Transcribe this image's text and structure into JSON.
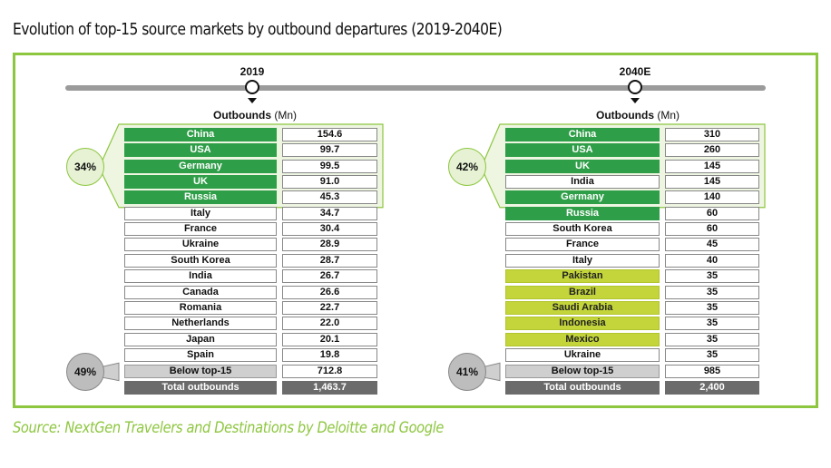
{
  "title": "Evolution of top-15 source markets by outbound departures (2019-2040E)",
  "source": "Source: NextGen Travelers and Destinations by Deloitte and Google",
  "colors": {
    "brand_green": "#8dc63f",
    "dark_green": "#2f9e48",
    "lime": "#c3d53a",
    "grey": "#cfcfcf",
    "dark_grey": "#6b6b6b"
  },
  "chart_data": [
    {
      "type": "table",
      "year_label": "2019",
      "column_header": "Outbounds",
      "column_unit": "(Mn)",
      "top5_share": "34%",
      "below_share": "49%",
      "rows": [
        {
          "country": "China",
          "value": "154.6",
          "style": "green"
        },
        {
          "country": "USA",
          "value": "99.7",
          "style": "green"
        },
        {
          "country": "Germany",
          "value": "99.5",
          "style": "green"
        },
        {
          "country": "UK",
          "value": "91.0",
          "style": "green"
        },
        {
          "country": "Russia",
          "value": "45.3",
          "style": "green"
        },
        {
          "country": "Italy",
          "value": "34.7",
          "style": "white"
        },
        {
          "country": "France",
          "value": "30.4",
          "style": "white"
        },
        {
          "country": "Ukraine",
          "value": "28.9",
          "style": "white"
        },
        {
          "country": "South Korea",
          "value": "28.7",
          "style": "white"
        },
        {
          "country": "India",
          "value": "26.7",
          "style": "white"
        },
        {
          "country": "Canada",
          "value": "26.6",
          "style": "white"
        },
        {
          "country": "Romania",
          "value": "22.7",
          "style": "white"
        },
        {
          "country": "Netherlands",
          "value": "22.0",
          "style": "white"
        },
        {
          "country": "Japan",
          "value": "20.1",
          "style": "white"
        },
        {
          "country": "Spain",
          "value": "19.8",
          "style": "white"
        }
      ],
      "below_label": "Below top-15",
      "below_value": "712.8",
      "total_label": "Total outbounds",
      "total_value": "1,463.7"
    },
    {
      "type": "table",
      "year_label": "2040E",
      "column_header": "Outbounds",
      "column_unit": "(Mn)",
      "top5_share": "42%",
      "below_share": "41%",
      "rows": [
        {
          "country": "China",
          "value": "310",
          "style": "green"
        },
        {
          "country": "USA",
          "value": "260",
          "style": "green"
        },
        {
          "country": "UK",
          "value": "145",
          "style": "green"
        },
        {
          "country": "India",
          "value": "145",
          "style": "white"
        },
        {
          "country": "Germany",
          "value": "140",
          "style": "green"
        },
        {
          "country": "Russia",
          "value": "60",
          "style": "green"
        },
        {
          "country": "South Korea",
          "value": "60",
          "style": "white"
        },
        {
          "country": "France",
          "value": "45",
          "style": "white"
        },
        {
          "country": "Italy",
          "value": "40",
          "style": "white"
        },
        {
          "country": "Pakistan",
          "value": "35",
          "style": "lime"
        },
        {
          "country": "Brazil",
          "value": "35",
          "style": "lime"
        },
        {
          "country": "Saudi Arabia",
          "value": "35",
          "style": "lime"
        },
        {
          "country": "Indonesia",
          "value": "35",
          "style": "lime"
        },
        {
          "country": "Mexico",
          "value": "35",
          "style": "lime"
        },
        {
          "country": "Ukraine",
          "value": "35",
          "style": "white"
        }
      ],
      "below_label": "Below top-15",
      "below_value": "985",
      "total_label": "Total outbounds",
      "total_value": "2,400"
    }
  ]
}
